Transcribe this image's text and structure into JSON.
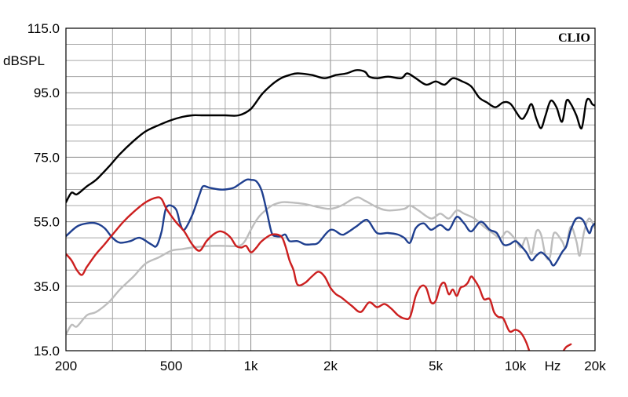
{
  "chart_data": {
    "type": "line",
    "title": "",
    "brand": "CLIO",
    "ylabel": "dBSPL",
    "xlabel": "Hz",
    "x_scale": "log",
    "xlim": [
      200,
      20000
    ],
    "ylim": [
      15,
      115
    ],
    "grid": true,
    "x_tick_values": [
      200,
      500,
      1000,
      2000,
      5000,
      10000,
      20000
    ],
    "x_tick_labels": [
      "200",
      "500",
      "1k",
      "2k",
      "5k",
      "10k",
      "20k"
    ],
    "y_tick_values": [
      15,
      35,
      55,
      75,
      95,
      115
    ],
    "y_tick_labels": [
      "15.0",
      "35.0",
      "55.0",
      "75.0",
      "95.0",
      "115.0"
    ],
    "series": [
      {
        "color": "#000000",
        "x": [
          200,
          210,
          220,
          240,
          260,
          290,
          320,
          360,
          400,
          450,
          500,
          550,
          600,
          650,
          700,
          800,
          900,
          1000,
          1100,
          1200,
          1300,
          1400,
          1500,
          1700,
          1900,
          2100,
          2300,
          2500,
          2700,
          2800,
          3000,
          3300,
          3700,
          3900,
          4200,
          4600,
          5000,
          5400,
          5800,
          6300,
          6800,
          7300,
          7800,
          8400,
          9000,
          9600,
          10500,
          11000,
          11500,
          12000,
          12500,
          13000,
          13600,
          14300,
          15000,
          15600,
          16200,
          17000,
          17800,
          18500,
          19000,
          19500,
          20000
        ],
        "y": [
          61,
          64,
          63.5,
          66,
          68,
          72,
          76,
          80,
          83,
          85,
          86.5,
          87.5,
          88,
          88,
          88,
          88,
          88,
          90,
          94.5,
          97.5,
          99.5,
          100.5,
          101,
          100.5,
          99.5,
          100.5,
          101,
          102,
          101.5,
          100,
          99.5,
          100,
          99.5,
          101,
          99.5,
          97.5,
          98.5,
          97.5,
          99.5,
          98.5,
          97,
          93.5,
          92,
          90.5,
          92,
          91.5,
          87,
          88.5,
          91.5,
          87,
          84,
          88,
          92.5,
          90.5,
          86,
          92.5,
          91.5,
          88,
          84,
          92,
          93,
          91.5,
          91
        ]
      },
      {
        "color": "#bdbdbd",
        "x": [
          200,
          210,
          220,
          240,
          260,
          290,
          320,
          360,
          400,
          450,
          500,
          550,
          600,
          700,
          800,
          900,
          950,
          1000,
          1050,
          1100,
          1200,
          1300,
          1400,
          1600,
          1800,
          2000,
          2200,
          2500,
          2700,
          3000,
          3300,
          3800,
          4000,
          4300,
          4800,
          5200,
          5600,
          6000,
          6400,
          7000,
          7600,
          8200,
          8800,
          9300,
          10000,
          10500,
          11000,
          11500,
          12000,
          12500,
          13000,
          13500,
          14000,
          15000,
          15500,
          16200,
          17000,
          17500,
          18200,
          19000,
          20000
        ],
        "y": [
          20,
          23,
          22.5,
          26,
          27,
          30,
          34,
          38,
          42,
          44,
          46,
          46.5,
          47,
          47.5,
          47.5,
          47.5,
          49,
          52.5,
          55.5,
          57.5,
          60,
          61,
          61,
          60.5,
          59.5,
          59,
          60,
          62.5,
          61.5,
          59.5,
          58.5,
          59,
          60,
          58.5,
          56,
          57.5,
          56,
          58.5,
          57.5,
          56,
          53.5,
          51.5,
          50,
          52,
          49.5,
          47,
          50,
          45,
          52,
          51,
          44.5,
          44,
          51.5,
          49,
          47,
          53.5,
          49,
          44.5,
          52,
          56,
          53
        ]
      },
      {
        "color": "#1f3f8f",
        "x": [
          200,
          220,
          240,
          260,
          280,
          300,
          320,
          350,
          380,
          420,
          440,
          460,
          480,
          520,
          540,
          560,
          600,
          640,
          660,
          700,
          760,
          800,
          860,
          900,
          960,
          1000,
          1050,
          1100,
          1150,
          1200,
          1250,
          1300,
          1350,
          1400,
          1500,
          1600,
          1700,
          1800,
          2000,
          2200,
          2300,
          2500,
          2700,
          2800,
          3000,
          3300,
          3600,
          3800,
          4000,
          4200,
          4500,
          4800,
          5200,
          5600,
          6000,
          6400,
          6800,
          7400,
          8000,
          8500,
          9000,
          9500,
          10000,
          10500,
          11000,
          11500,
          12000,
          12500,
          13000,
          13500,
          14000,
          15000,
          15600,
          16200,
          17000,
          18000,
          19000,
          19500,
          20000
        ],
        "y": [
          50.5,
          53.5,
          54.5,
          54.5,
          53,
          50,
          48.5,
          49,
          50,
          48,
          47.5,
          52,
          59.5,
          59,
          54.5,
          52.5,
          57,
          63.5,
          66,
          65.5,
          65,
          65,
          65.5,
          66.5,
          68,
          68,
          67.5,
          64.5,
          58,
          51.5,
          50.5,
          50.5,
          51,
          49,
          49,
          48,
          48,
          48.5,
          52.5,
          51,
          51.5,
          53.5,
          55.5,
          55,
          51.5,
          51.5,
          51,
          50,
          48.5,
          53,
          54.5,
          52.5,
          54,
          52.5,
          56.5,
          54.5,
          52,
          55,
          52.5,
          51.5,
          48,
          48,
          49,
          47.5,
          45.5,
          43,
          44.5,
          45.5,
          44.5,
          43,
          41.5,
          45.5,
          47.5,
          52.5,
          56,
          55.5,
          51.5,
          53.5,
          54.5
        ]
      },
      {
        "color": "#cc1f1f",
        "x": [
          200,
          210,
          220,
          230,
          240,
          260,
          280,
          300,
          330,
          360,
          400,
          440,
          460,
          480,
          520,
          560,
          600,
          640,
          680,
          720,
          760,
          800,
          840,
          880,
          920,
          960,
          1000,
          1050,
          1100,
          1200,
          1300,
          1350,
          1400,
          1450,
          1500,
          1600,
          1700,
          1800,
          1900,
          2000,
          2100,
          2200,
          2400,
          2600,
          2800,
          3000,
          3200,
          3400,
          3600,
          3800,
          4000,
          4200,
          4400,
          4600,
          4800,
          5000,
          5200,
          5400,
          5600,
          5800,
          6000,
          6200,
          6400,
          6600,
          6800,
          7000,
          7300,
          7600,
          8000,
          8300,
          8600,
          9000,
          9500,
          10000,
          10500,
          11000,
          11500,
          12000,
          12500,
          13000,
          13500,
          15000,
          15500,
          16200
        ],
        "y": [
          45,
          43,
          40,
          38.5,
          41,
          45,
          48,
          51,
          55,
          58,
          61,
          62.5,
          62,
          59,
          55,
          52,
          48,
          46,
          49,
          51,
          52,
          51.5,
          50,
          47.5,
          47,
          47.5,
          45.5,
          47,
          49,
          51,
          50.5,
          47.5,
          43,
          40,
          35.5,
          36,
          38,
          39.5,
          38,
          34.5,
          32.5,
          31.5,
          29,
          27,
          30,
          28.5,
          29.5,
          28,
          26,
          25,
          25.5,
          32,
          35,
          34.5,
          30,
          30.5,
          35,
          36,
          32.5,
          34,
          32,
          34.5,
          35,
          36,
          38,
          37,
          34.5,
          31,
          31,
          27,
          25.5,
          25,
          21,
          21.5,
          20.5,
          17.5,
          13,
          10,
          7,
          5,
          6,
          14,
          16,
          17
        ]
      }
    ]
  }
}
